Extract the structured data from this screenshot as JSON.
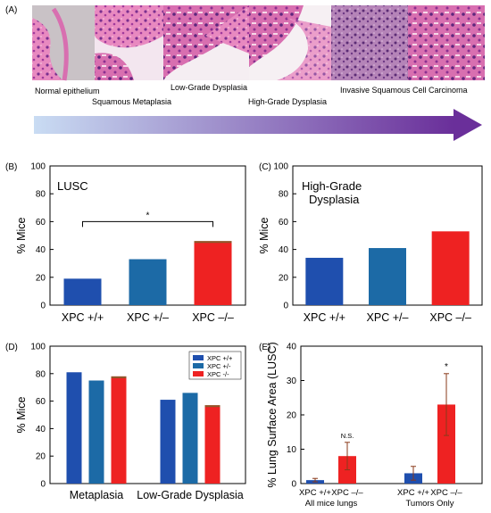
{
  "panel_labels": [
    "(A)",
    "(B)",
    "(C)",
    "(D)",
    "(E)"
  ],
  "histology": {
    "stages": [
      "Normal epithelium",
      "Squamous Metaplasia",
      "Low-Grade Dysplasia",
      "High-Grade Dysplasia",
      "Invasive Squamous Cell Carcinoma"
    ]
  },
  "colors": {
    "xpc_pp": "#1f4fae",
    "xpc_pm": "#1c6aa6",
    "xpc_mm": "#ee2222",
    "xpc_mm_top": "#8b5a2b",
    "arrow_start": "#c9dcf3",
    "arrow_end": "#6a2f9a"
  },
  "chart_data": [
    {
      "panel": "B",
      "type": "bar",
      "title": "LUSC",
      "ylabel": "% Mice",
      "ylim": [
        0,
        100
      ],
      "yticks": [
        0,
        20,
        40,
        60,
        80,
        100
      ],
      "categories": [
        "XPC +/+",
        "XPC +/–",
        "XPC –/–"
      ],
      "values": [
        19,
        33,
        46
      ],
      "annotations": [
        {
          "text": "*",
          "between": [
            "XPC +/+",
            "XPC –/–"
          ]
        }
      ]
    },
    {
      "panel": "C",
      "type": "bar",
      "title": "High-Grade Dysplasia",
      "ylabel": "% Mice",
      "ylim": [
        0,
        100
      ],
      "yticks": [
        0,
        20,
        40,
        60,
        80,
        100
      ],
      "categories": [
        "XPC +/+",
        "XPC +/–",
        "XPC –/–"
      ],
      "values": [
        34,
        41,
        53
      ]
    },
    {
      "panel": "D",
      "type": "bar",
      "ylabel": "% Mice",
      "ylim": [
        0,
        100
      ],
      "yticks": [
        0,
        20,
        40,
        60,
        80,
        100
      ],
      "categories": [
        "Metaplasia",
        "Low-Grade Dysplasia"
      ],
      "series": [
        {
          "name": "XPC +/+",
          "values": [
            81,
            61
          ]
        },
        {
          "name": "XPC +/-",
          "values": [
            75,
            66
          ]
        },
        {
          "name": "XPC -/-",
          "values": [
            78,
            57
          ]
        }
      ],
      "legend": "top-right"
    },
    {
      "panel": "E",
      "type": "bar",
      "ylabel": "% Lung Surface Area (LUSC)",
      "ylim": [
        0,
        40
      ],
      "yticks": [
        0,
        10,
        20,
        30,
        40
      ],
      "groups": [
        "All mice lungs",
        "Tumors Only"
      ],
      "bar_labels": [
        "XPC +/+",
        "XPC –/–",
        "XPC +/+",
        "XPC –/–"
      ],
      "values": [
        1,
        8,
        3,
        23
      ],
      "errors": [
        0.5,
        4,
        2,
        9
      ],
      "annotations": [
        {
          "text": "N.S.",
          "bar": 1
        },
        {
          "text": "*",
          "bar": 3
        }
      ]
    }
  ]
}
